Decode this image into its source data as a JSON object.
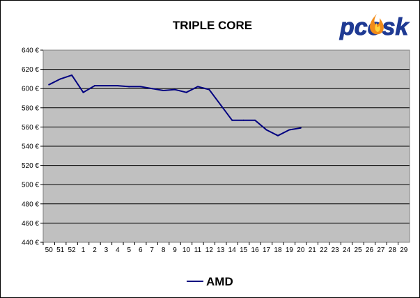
{
  "colors": {
    "plot_background": "#c0c0c0",
    "series_line": "#000080",
    "gridline": "#000000",
    "frame_background": "#ffffff",
    "logo_blue": "#1f3a93",
    "logo_flame": "#f28c1a"
  },
  "logo": {
    "text": "pcosk",
    "icon": "flame-icon"
  },
  "chart_data": {
    "type": "line",
    "title": "TRIPLE CORE",
    "xlabel": "",
    "ylabel": "",
    "categories": [
      "50",
      "51",
      "52",
      "1",
      "2",
      "3",
      "4",
      "5",
      "6",
      "7",
      "8",
      "9",
      "10",
      "11",
      "12",
      "13",
      "14",
      "15",
      "16",
      "17",
      "18",
      "19",
      "20",
      "21",
      "22",
      "23",
      "24",
      "25",
      "26",
      "27",
      "28",
      "29"
    ],
    "series": [
      {
        "name": "AMD",
        "values": [
          604,
          610,
          614,
          596,
          603,
          603,
          603,
          602,
          602,
          600,
          598,
          599,
          596,
          602,
          599,
          583,
          567,
          567,
          567,
          557,
          551,
          557,
          559,
          null,
          null,
          null,
          null,
          null,
          null,
          null,
          null,
          null
        ]
      }
    ],
    "ylim": [
      440,
      640
    ],
    "yticks": [
      640,
      620,
      600,
      580,
      560,
      540,
      520,
      500,
      480,
      460,
      440
    ],
    "ytick_suffix": " €",
    "grid": true,
    "legend": "bottom-center"
  }
}
